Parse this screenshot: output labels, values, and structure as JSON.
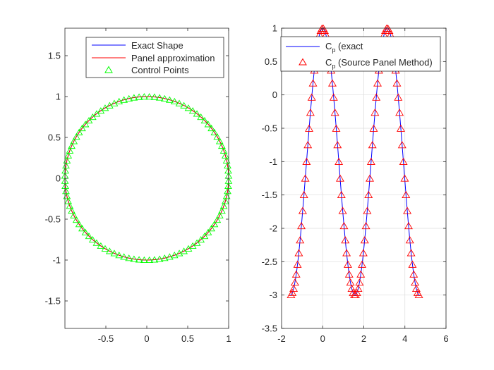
{
  "chart_data": [
    {
      "type": "line",
      "title": "",
      "xlabel": "",
      "ylabel": "",
      "xlim": [
        -1,
        1
      ],
      "ylim": [
        -1.8,
        1.8
      ],
      "xticks": [
        -0.5,
        0,
        0.5,
        1
      ],
      "xtick_labels": [
        "-0.5",
        "0",
        "0.5",
        "1"
      ],
      "yticks": [
        -1.5,
        -1,
        -0.5,
        0,
        0.5,
        1,
        1.5
      ],
      "ytick_labels": [
        "-1.5",
        "-1",
        "-0.5",
        "0",
        "0.5",
        "1",
        "1.5"
      ],
      "grid": false,
      "equal_aspect": true,
      "legend_position": "top-right",
      "series": [
        {
          "name": "Exact Shape",
          "kind": "line",
          "color": "#0000ff",
          "shape": "circle",
          "center": [
            0,
            0
          ],
          "radius": 1
        },
        {
          "name": "Panel approximation",
          "kind": "line",
          "color": "#ff0000",
          "shape": "polygon",
          "center": [
            0,
            0
          ],
          "radius": 1,
          "panels": 100
        },
        {
          "name": "Control Points",
          "kind": "marker",
          "marker": "triangle",
          "color": "#00ff00",
          "shape": "polygon-midpoints",
          "center": [
            0,
            0
          ],
          "radius": 1,
          "panels": 100
        }
      ]
    },
    {
      "type": "line",
      "title": "",
      "xlabel": "",
      "ylabel": "",
      "xlim": [
        -2,
        6
      ],
      "ylim": [
        -3.5,
        1
      ],
      "xticks": [
        -2,
        0,
        2,
        4,
        6
      ],
      "xtick_labels": [
        "-2",
        "0",
        "2",
        "4",
        "6"
      ],
      "yticks": [
        -3.5,
        -3,
        -2.5,
        -2,
        -1.5,
        -1,
        -0.5,
        0,
        0.5,
        1
      ],
      "ytick_labels": [
        "-3.5",
        "-3",
        "-2.5",
        "-2",
        "-1.5",
        "-1",
        "-0.5",
        "0",
        "0.5",
        "1"
      ],
      "grid": true,
      "legend_position": "top-right",
      "series": [
        {
          "name": "Cp (exact",
          "name_main": "C",
          "name_sub": "p",
          "name_rest": " (exact",
          "kind": "line",
          "color": "#0000ff",
          "function": "1 - 4*sin(theta)^2",
          "theta_range": [
            -1.5708,
            4.7124
          ]
        },
        {
          "name": "Cp (Source Panel Method)",
          "name_main": "C",
          "name_sub": "p",
          "name_rest": " (Source Panel Method)",
          "kind": "marker",
          "marker": "triangle",
          "color": "#ff0000",
          "function": "1 - 4*sin(theta)^2",
          "theta_range": [
            -1.5708,
            4.7124
          ],
          "points": 100
        }
      ]
    }
  ]
}
